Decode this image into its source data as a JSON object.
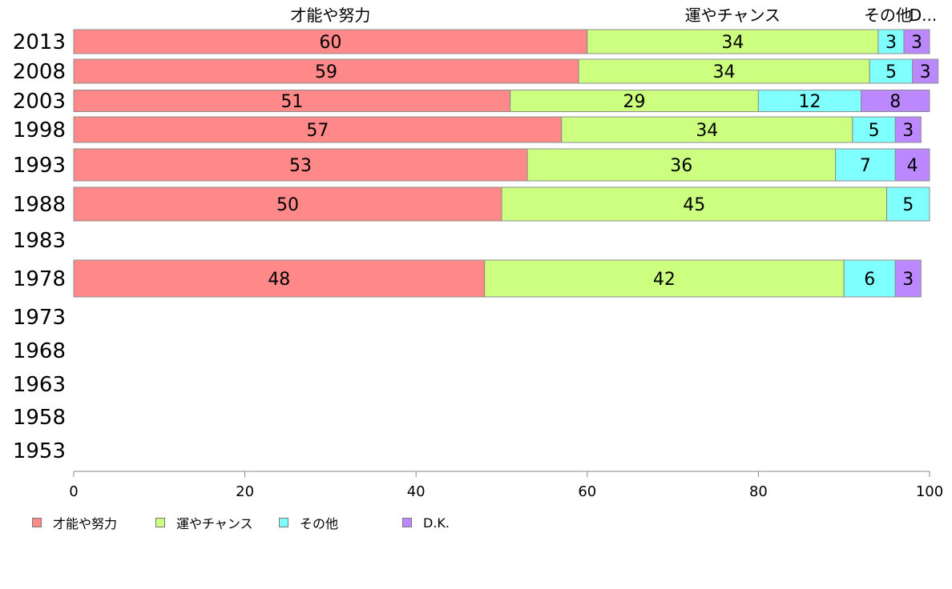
{
  "chart_data": {
    "type": "bar",
    "orientation": "horizontal",
    "stacked": true,
    "categories": [
      "2013",
      "2008",
      "2003",
      "1998",
      "1993",
      "1988",
      "1983",
      "1978",
      "1973",
      "1968",
      "1963",
      "1958",
      "1953"
    ],
    "series": [
      {
        "name": "才能や努力",
        "color": "#ff8888",
        "values": [
          60,
          59,
          51,
          57,
          53,
          50,
          null,
          48,
          null,
          null,
          null,
          null,
          null
        ]
      },
      {
        "name": "運やチャンス",
        "color": "#ccff80",
        "values": [
          34,
          34,
          29,
          34,
          36,
          45,
          null,
          42,
          null,
          null,
          null,
          null,
          null
        ]
      },
      {
        "name": "その他",
        "color": "#80ffff",
        "values": [
          3,
          5,
          12,
          5,
          7,
          5,
          null,
          6,
          null,
          null,
          null,
          null,
          null
        ]
      },
      {
        "name": "D.K.",
        "color": "#bb88ff",
        "values": [
          3,
          3,
          8,
          3,
          4,
          0,
          null,
          3,
          null,
          null,
          null,
          null,
          null
        ]
      }
    ],
    "top_labels": [
      "才能や努力",
      "運やチャンス",
      "その他",
      "D.K."
    ],
    "x_ticks": [
      "0",
      "20",
      "40",
      "60",
      "80",
      "100"
    ],
    "xlim": [
      0,
      100
    ],
    "grid": false,
    "legend_position": "bottom-left"
  }
}
